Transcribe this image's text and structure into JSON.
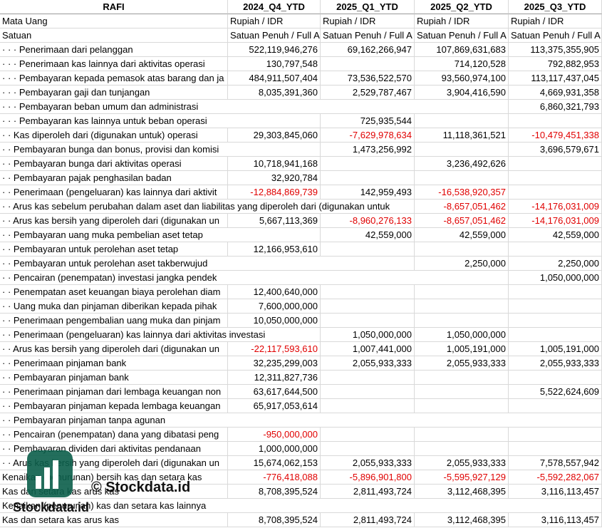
{
  "header": {
    "columns": [
      "RAFI",
      "2024_Q4_YTD",
      "2025_Q1_YTD",
      "2025_Q2_YTD",
      "2025_Q3_YTD"
    ]
  },
  "meta_rows": [
    {
      "label": "Mata Uang",
      "values": [
        "Rupiah / IDR",
        "Rupiah / IDR",
        "Rupiah / IDR",
        "Rupiah / IDR"
      ]
    },
    {
      "label": "Satuan",
      "values": [
        "Satuan Penuh / Full A",
        "Satuan Penuh / Full A",
        "Satuan Penuh / Full A",
        "Satuan Penuh / Full A"
      ]
    }
  ],
  "rows": [
    {
      "label": "· · · Penerimaan dari pelanggan",
      "values": [
        "522,119,946,276",
        "69,162,266,947",
        "107,869,631,683",
        "113,375,355,905"
      ]
    },
    {
      "label": "· · · Penerimaan kas lainnya dari aktivitas operasi",
      "values": [
        "130,797,548",
        null,
        "714,120,528",
        "792,882,953"
      ]
    },
    {
      "label": "· · · Pembayaran kepada pemasok atas barang dan ja",
      "values": [
        "484,911,507,404",
        "73,536,522,570",
        "93,560,974,100",
        "113,117,437,045"
      ]
    },
    {
      "label": "· · · Pembayaran gaji dan tunjangan",
      "values": [
        "8,035,391,360",
        "2,529,787,467",
        "3,904,416,590",
        "4,669,931,358"
      ]
    },
    {
      "label": "· · · Pembayaran beban umum dan administrasi",
      "values": [
        null,
        null,
        null,
        "6,860,321,793"
      ]
    },
    {
      "label": "· · · Pembayaran kas lainnya untuk beban operasi",
      "values": [
        null,
        "725,935,544",
        null,
        null
      ]
    },
    {
      "label": "· · Kas diperoleh dari (digunakan untuk) operasi",
      "values": [
        "29,303,845,060",
        "-7,629,978,634",
        "11,118,361,521",
        "-10,479,451,338"
      ]
    },
    {
      "label": "· · Pembayaran bunga dan bonus, provisi dan komisi",
      "values": [
        null,
        "1,473,256,992",
        null,
        "3,696,579,671"
      ]
    },
    {
      "label": "· · Pembayaran bunga dari aktivitas operasi",
      "values": [
        "10,718,941,168",
        null,
        "3,236,492,626",
        null
      ]
    },
    {
      "label": "· · Pembayaran pajak penghasilan badan",
      "values": [
        "32,920,784",
        null,
        null,
        null
      ]
    },
    {
      "label": "· · Penerimaan (pengeluaran) kas lainnya dari aktivit",
      "values": [
        "-12,884,869,739",
        "142,959,493",
        "-16,538,920,357",
        null
      ]
    },
    {
      "label": "· · Arus kas sebelum perubahan dalam aset dan liabilitas yang diperoleh dari (digunakan untuk",
      "values": [
        null,
        null,
        "-8,657,051,462",
        "-14,176,031,009"
      ]
    },
    {
      "label": "· · Arus kas bersih yang diperoleh dari (digunakan un",
      "values": [
        "5,667,113,369",
        "-8,960,276,133",
        "-8,657,051,462",
        "-14,176,031,009"
      ]
    },
    {
      "label": "· · Pembayaran uang muka pembelian aset tetap",
      "values": [
        null,
        "42,559,000",
        "42,559,000",
        "42,559,000"
      ]
    },
    {
      "label": "· · Pembayaran untuk perolehan aset tetap",
      "values": [
        "12,166,953,610",
        null,
        null,
        null
      ]
    },
    {
      "label": "· · Pembayaran untuk perolehan aset takberwujud",
      "values": [
        null,
        null,
        "2,250,000",
        "2,250,000"
      ]
    },
    {
      "label": "· · Pencairan (penempatan) investasi jangka pendek",
      "values": [
        null,
        null,
        null,
        "1,050,000,000"
      ]
    },
    {
      "label": "· · Penempatan aset keuangan biaya perolehan diam",
      "values": [
        "12,400,640,000",
        null,
        null,
        null
      ]
    },
    {
      "label": "· · Uang muka dan pinjaman diberikan kepada pihak",
      "values": [
        "7,600,000,000",
        null,
        null,
        null
      ]
    },
    {
      "label": "· · Penerimaan pengembalian uang muka dan pinjam",
      "values": [
        "10,050,000,000",
        null,
        null,
        null
      ]
    },
    {
      "label": "· · Penerimaan (pengeluaran) kas lainnya dari aktivitas investasi",
      "values": [
        null,
        "1,050,000,000",
        "1,050,000,000",
        null
      ]
    },
    {
      "label": "· · Arus kas bersih yang diperoleh dari (digunakan un",
      "values": [
        "-22,117,593,610",
        "1,007,441,000",
        "1,005,191,000",
        "1,005,191,000"
      ]
    },
    {
      "label": "· · Penerimaan pinjaman bank",
      "values": [
        "32,235,299,003",
        "2,055,933,333",
        "2,055,933,333",
        "2,055,933,333"
      ]
    },
    {
      "label": "· · Pembayaran pinjaman bank",
      "values": [
        "12,311,827,736",
        null,
        null,
        null
      ]
    },
    {
      "label": "· · Penerimaan pinjaman dari lembaga keuangan non",
      "values": [
        "63,617,644,500",
        null,
        null,
        "5,522,624,609"
      ]
    },
    {
      "label": "· · Pembayaran pinjaman kepada lembaga keuangan",
      "values": [
        "65,917,053,614",
        null,
        null,
        null
      ]
    },
    {
      "label": "· · Pembayaran pinjaman tanpa agunan",
      "values": [
        null,
        null,
        null,
        null
      ]
    },
    {
      "label": "· · Pencairan (penempatan) dana yang dibatasi peng",
      "values": [
        "-950,000,000",
        null,
        null,
        null
      ]
    },
    {
      "label": "· · Pembayaran dividen dari aktivitas pendanaan",
      "values": [
        "1,000,000,000",
        null,
        null,
        null
      ]
    },
    {
      "label": "· · Arus kas bersih yang diperoleh dari (digunakan un",
      "values": [
        "15,674,062,153",
        "2,055,933,333",
        "2,055,933,333",
        "7,578,557,942"
      ]
    },
    {
      "label": "Kenaikan (penurunan) bersih kas dan setara kas",
      "values": [
        "-776,418,088",
        "-5,896,901,800",
        "-5,595,927,129",
        "-5,592,282,067"
      ]
    },
    {
      "label": "Kas dan setara kas arus kas",
      "values": [
        "8,708,395,524",
        "2,811,493,724",
        "3,112,468,395",
        "3,116,113,457"
      ]
    },
    {
      "label": "Kenaikan (penurunan) kas dan setara kas lainnya",
      "values": [
        null,
        null,
        null,
        null
      ]
    },
    {
      "label": "Kas dan setara kas arus kas",
      "values": [
        "8,708,395,524",
        "2,811,493,724",
        "3,112,468,395",
        "3,116,113,457"
      ]
    }
  ],
  "watermark": {
    "main": "© Stockdata.id",
    "logo": "Stockdata.id"
  }
}
